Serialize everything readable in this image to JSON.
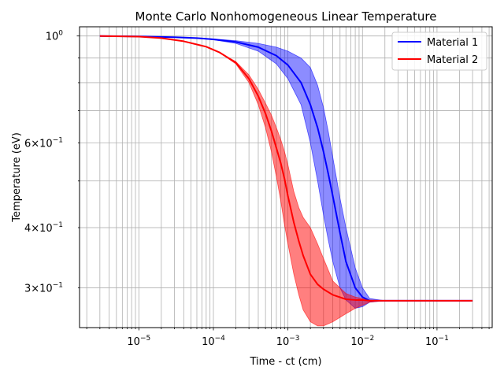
{
  "chart_data": {
    "type": "line",
    "title": "Monte Carlo Nonhomogeneous Linear Temperature",
    "xlabel": "Time - ct (cm)",
    "ylabel": "Temperature (eV)",
    "xscale": "log",
    "yscale": "log",
    "xlim": [
      1.6e-06,
      0.55
    ],
    "ylim": [
      0.248,
      1.045
    ],
    "grid": true,
    "grid_which": "both",
    "legend_position": "top-right",
    "x_ticks": [
      {
        "value": 1e-05,
        "base": "10",
        "exp": "−5"
      },
      {
        "value": 0.0001,
        "base": "10",
        "exp": "−4"
      },
      {
        "value": 0.001,
        "base": "10",
        "exp": "−3"
      },
      {
        "value": 0.01,
        "base": "10",
        "exp": "−2"
      },
      {
        "value": 0.1,
        "base": "10",
        "exp": "−1"
      }
    ],
    "y_ticks": [
      {
        "value": 1.0,
        "mant": "",
        "base": "10",
        "exp": "0"
      },
      {
        "value": 0.6,
        "mant": "6×",
        "base": "10",
        "exp": "−1"
      },
      {
        "value": 0.4,
        "mant": "4×",
        "base": "10",
        "exp": "−1"
      },
      {
        "value": 0.3,
        "mant": "3×",
        "base": "10",
        "exp": "−1"
      }
    ],
    "series": [
      {
        "name": "Material 1",
        "color": "#0000ff",
        "band_color": "#0000ff",
        "band_alpha": 0.45,
        "x": [
          3e-06,
          1e-05,
          3e-05,
          6e-05,
          0.0001,
          0.0002,
          0.0004,
          0.0007,
          0.001,
          0.0015,
          0.002,
          0.0025,
          0.003,
          0.0035,
          0.004,
          0.005,
          0.006,
          0.008,
          0.01,
          0.0125,
          0.02,
          0.05,
          0.1,
          0.3
        ],
        "y": [
          1.0,
          0.998,
          0.994,
          0.99,
          0.984,
          0.972,
          0.948,
          0.91,
          0.87,
          0.8,
          0.72,
          0.645,
          0.575,
          0.515,
          0.465,
          0.39,
          0.34,
          0.3,
          0.287,
          0.282,
          0.282,
          0.282,
          0.282,
          0.282
        ],
        "lower": [
          1.0,
          0.998,
          0.993,
          0.988,
          0.982,
          0.965,
          0.93,
          0.875,
          0.815,
          0.72,
          0.6,
          0.5,
          0.425,
          0.375,
          0.34,
          0.3,
          0.283,
          0.272,
          0.274,
          0.28,
          0.282,
          0.282,
          0.282,
          0.282
        ],
        "upper": [
          1.0,
          0.998,
          0.995,
          0.991,
          0.986,
          0.978,
          0.965,
          0.948,
          0.93,
          0.9,
          0.86,
          0.79,
          0.71,
          0.63,
          0.56,
          0.46,
          0.4,
          0.33,
          0.3,
          0.285,
          0.282,
          0.282,
          0.282,
          0.282
        ]
      },
      {
        "name": "Material 2",
        "color": "#ff0000",
        "band_color": "#ff0000",
        "band_alpha": 0.5,
        "x": [
          3e-06,
          1e-05,
          2e-05,
          4e-05,
          8e-05,
          0.00012,
          0.0002,
          0.0003,
          0.0004,
          0.0005,
          0.0006,
          0.0007,
          0.0008,
          0.0009,
          0.001,
          0.0012,
          0.0014,
          0.0016,
          0.002,
          0.0025,
          0.003,
          0.004,
          0.006,
          0.008,
          0.01,
          0.0125,
          0.02,
          0.05,
          0.1,
          0.3
        ],
        "y": [
          1.0,
          0.997,
          0.99,
          0.975,
          0.95,
          0.925,
          0.88,
          0.815,
          0.75,
          0.69,
          0.635,
          0.585,
          0.545,
          0.505,
          0.465,
          0.41,
          0.375,
          0.35,
          0.32,
          0.305,
          0.298,
          0.29,
          0.284,
          0.283,
          0.283,
          0.282,
          0.282,
          0.282,
          0.282,
          0.282
        ],
        "lower": [
          1.0,
          0.997,
          0.99,
          0.975,
          0.95,
          0.925,
          0.875,
          0.8,
          0.72,
          0.645,
          0.575,
          0.51,
          0.455,
          0.405,
          0.37,
          0.32,
          0.29,
          0.27,
          0.255,
          0.25,
          0.25,
          0.255,
          0.265,
          0.272,
          0.276,
          0.28,
          0.282,
          0.282,
          0.282,
          0.282
        ],
        "upper": [
          1.0,
          0.997,
          0.99,
          0.975,
          0.95,
          0.925,
          0.885,
          0.83,
          0.775,
          0.725,
          0.685,
          0.645,
          0.61,
          0.575,
          0.54,
          0.475,
          0.44,
          0.42,
          0.4,
          0.37,
          0.345,
          0.31,
          0.292,
          0.287,
          0.285,
          0.283,
          0.282,
          0.282,
          0.282,
          0.282
        ]
      }
    ]
  }
}
